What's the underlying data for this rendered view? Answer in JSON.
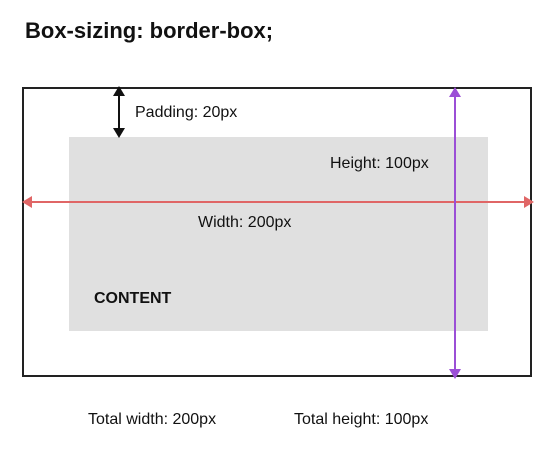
{
  "title": "Box-sizing: border-box;",
  "labels": {
    "padding": "Padding: 20px",
    "height": "Height: 100px",
    "width": "Width: 200px",
    "content": "CONTENT",
    "total_width": "Total width: 200px",
    "total_height": "Total height: 100px"
  },
  "colors": {
    "content_fill": "#e0e0e0",
    "border": "#222222",
    "padding_arrow": "#111111",
    "width_arrow": "#e06666",
    "height_arrow": "#9b4fd6"
  }
}
